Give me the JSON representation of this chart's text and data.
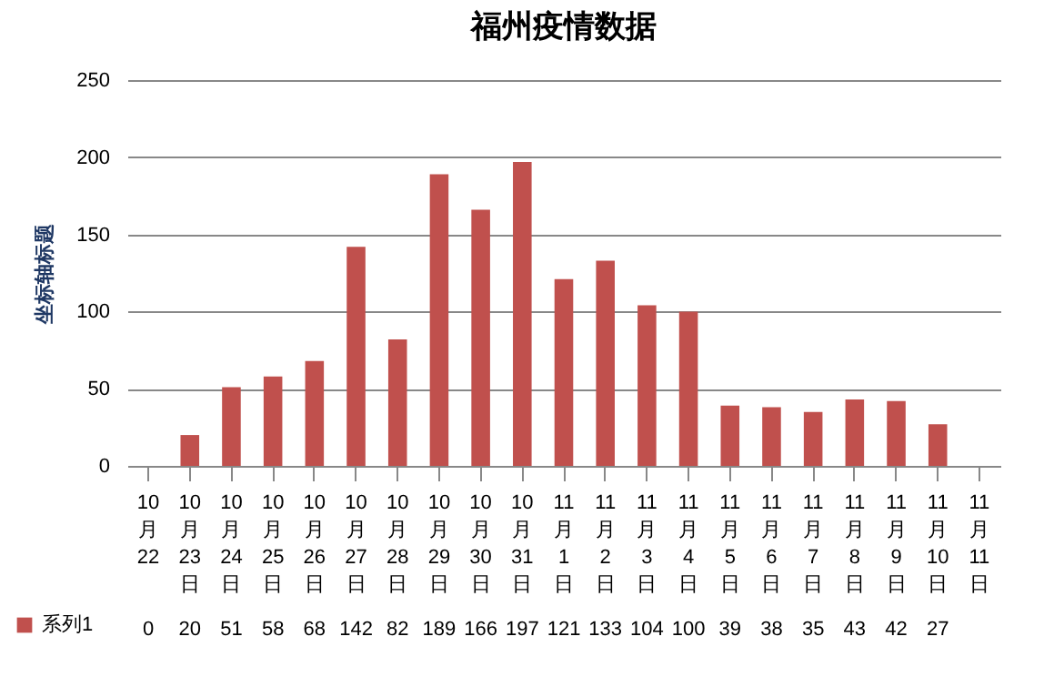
{
  "chart_data": {
    "type": "bar",
    "title": "福州疫情数据",
    "ylabel": "坐标轴标题",
    "categories": [
      "10月22",
      "10月23日",
      "10月24日",
      "10月25日",
      "10月26日",
      "10月27日",
      "10月28日",
      "10月29日",
      "10月30日",
      "10月31日",
      "11月1日",
      "11月2日",
      "11月3日",
      "11月4日",
      "11月5日",
      "11月6日",
      "11月7日",
      "11月8日",
      "11月9日",
      "11月10日",
      "11月11日"
    ],
    "series": [
      {
        "name": "系列1",
        "color": "#c0504d",
        "values": [
          0,
          20,
          51,
          58,
          68,
          142,
          82,
          189,
          166,
          197,
          121,
          133,
          104,
          100,
          39,
          38,
          35,
          43,
          42,
          27,
          null
        ]
      }
    ],
    "ylim": [
      0,
      250
    ],
    "yticks": [
      0,
      50,
      100,
      150,
      200,
      250
    ],
    "grid": "y",
    "data_labels": true,
    "legend": "bottom left"
  }
}
